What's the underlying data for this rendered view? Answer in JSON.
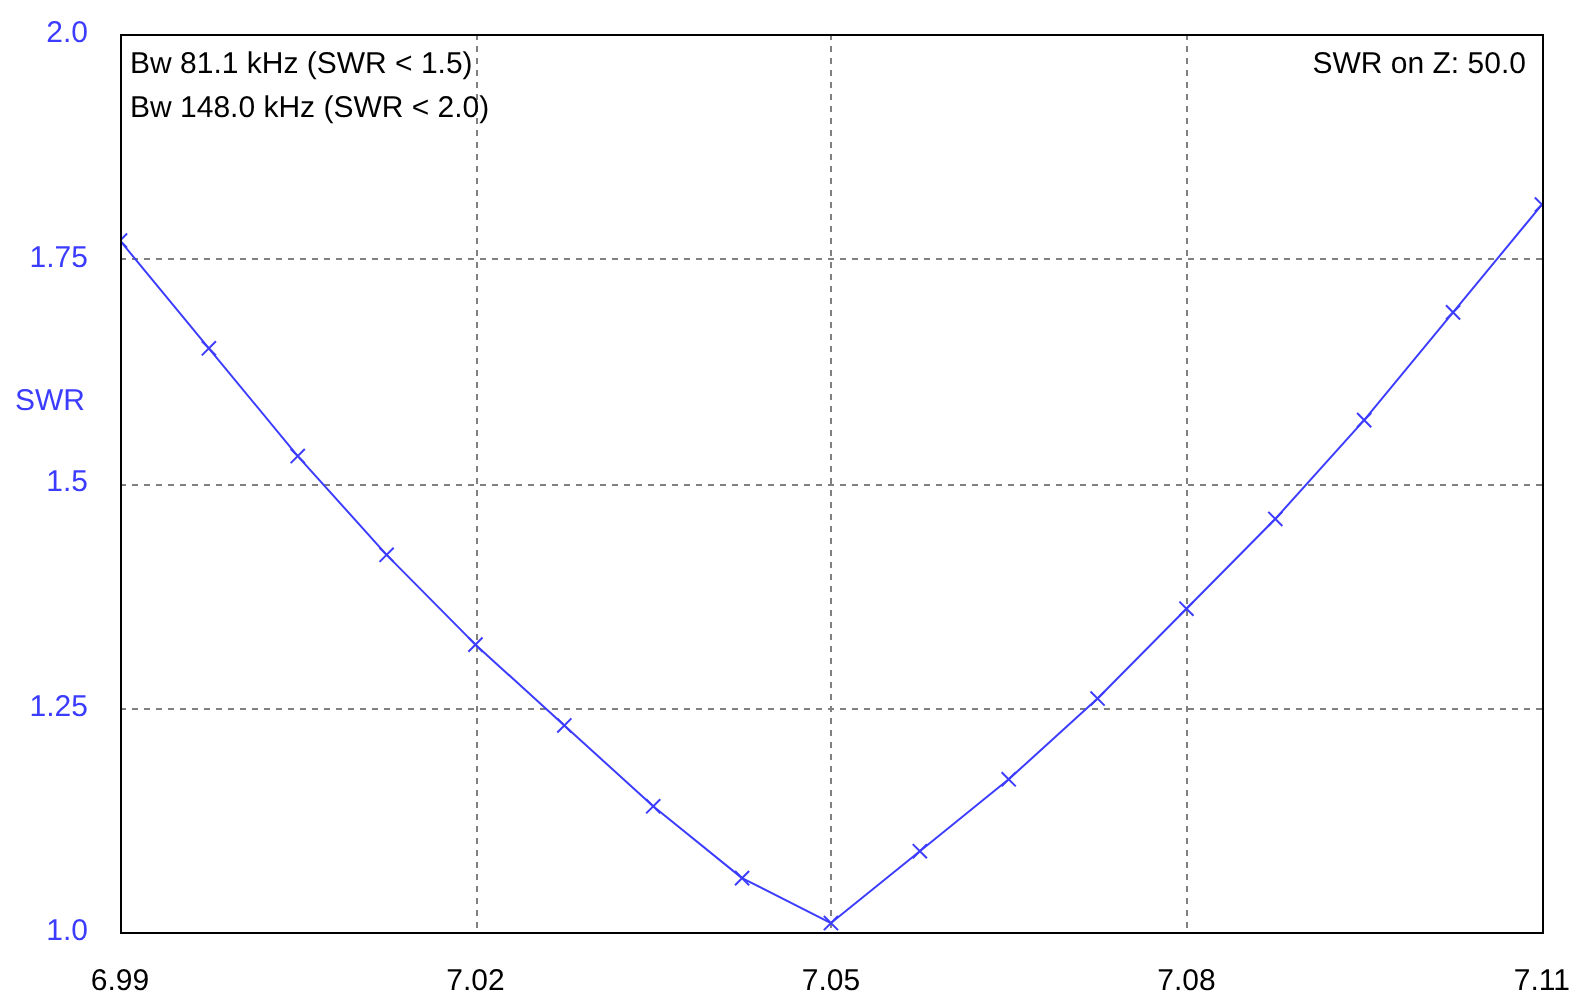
{
  "chart_data": {
    "type": "line",
    "ylabel": "SWR",
    "annotations": [
      "Bw 81.1 kHz (SWR < 1.5)",
      "Bw 148.0 kHz (SWR < 2.0)",
      "SWR on Z: 50.0"
    ],
    "x": [
      6.99,
      6.9975,
      7.005,
      7.0125,
      7.02,
      7.0275,
      7.035,
      7.0425,
      7.05,
      7.0575,
      7.065,
      7.0725,
      7.08,
      7.0875,
      7.095,
      7.1025,
      7.11
    ],
    "series": [
      {
        "color": "#3c3cff",
        "values": [
          1.77,
          1.65,
          1.53,
          1.42,
          1.32,
          1.23,
          1.14,
          1.06,
          1.01,
          1.09,
          1.17,
          1.26,
          1.36,
          1.46,
          1.57,
          1.69,
          1.81
        ]
      }
    ],
    "xlim": [
      6.99,
      7.11
    ],
    "xticks": [
      6.99,
      7.02,
      7.05,
      7.08,
      7.11
    ],
    "ylim": [
      1.0,
      2.0
    ],
    "yticks": [
      {
        "value": 1.0,
        "label": "1.0"
      },
      1.25,
      1.5,
      1.75,
      {
        "value": 2.0,
        "label": "2.0"
      }
    ],
    "grid": true,
    "legend": false,
    "marker": "cross",
    "line_style": "solid"
  }
}
